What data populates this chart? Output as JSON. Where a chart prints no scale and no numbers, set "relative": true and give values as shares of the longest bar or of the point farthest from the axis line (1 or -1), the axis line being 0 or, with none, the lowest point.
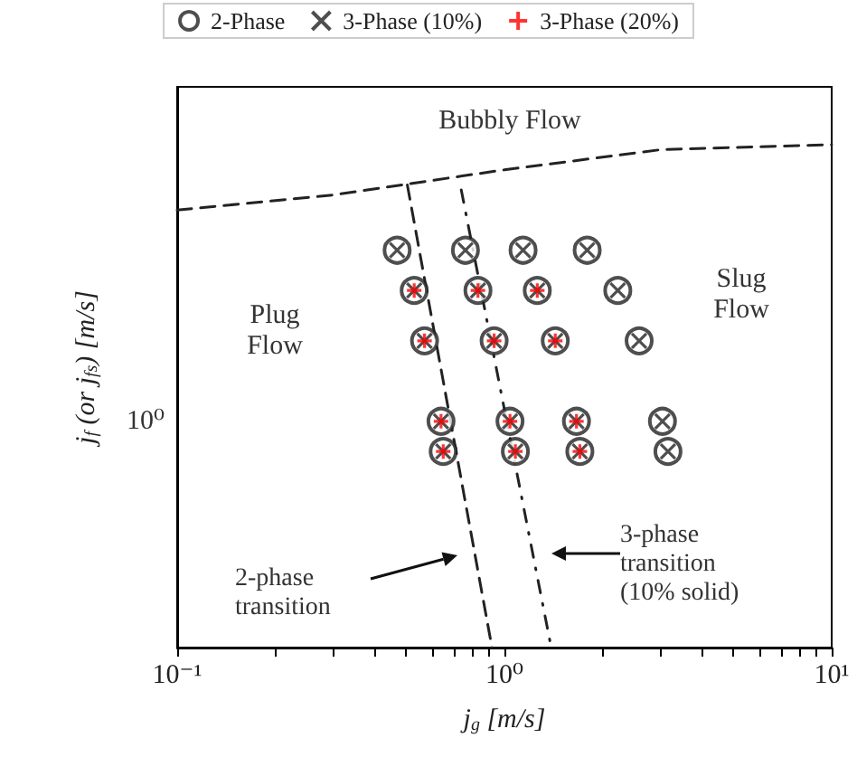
{
  "chart_data": {
    "type": "scatter",
    "xlabel": "j$_{g}$ [m/s]",
    "ylabel": "j$_{f}$ (or j$_{fs}$) [m/s]",
    "log": "x",
    "grid": false,
    "legend": "top",
    "relative": true,
    "xlim": [
      0.1,
      10
    ],
    "xticks": [
      {
        "value": 0.1,
        "label": "10⁻¹"
      },
      {
        "value": 0.2,
        "label": null
      },
      {
        "value": 0.3,
        "label": null
      },
      {
        "value": 0.4,
        "label": null
      },
      {
        "value": 0.5,
        "label": null
      },
      {
        "value": 0.6,
        "label": null
      },
      {
        "value": 0.7,
        "label": null
      },
      {
        "value": 0.8,
        "label": null
      },
      {
        "value": 0.9,
        "label": null
      },
      {
        "value": 1,
        "label": "10⁰"
      },
      {
        "value": 2,
        "label": null
      },
      {
        "value": 3,
        "label": null
      },
      {
        "value": 4,
        "label": null
      },
      {
        "value": 5,
        "label": null
      },
      {
        "value": 6,
        "label": null
      },
      {
        "value": 7,
        "label": null
      },
      {
        "value": 8,
        "label": null
      },
      {
        "value": 9,
        "label": null
      },
      {
        "value": 10,
        "label": "10¹"
      }
    ],
    "series": [
      {
        "name": "2-Phase",
        "color": "#222222",
        "marker": "circle",
        "x": [
          0.47,
          0.76,
          1.14,
          1.79,
          0.53,
          0.83,
          1.26,
          2.22,
          0.57,
          0.93,
          1.43,
          2.58,
          0.64,
          1.04,
          1.66,
          3.04,
          0.65,
          1.08,
          1.7,
          3.16
        ],
        "values": [
          0.79,
          0.79,
          0.79,
          0.79,
          0.71,
          0.71,
          0.71,
          0.71,
          0.61,
          0.61,
          0.61,
          0.61,
          0.45,
          0.45,
          0.45,
          0.45,
          0.39,
          0.39,
          0.39,
          0.39
        ]
      },
      {
        "name": "3-Phase (10%)",
        "color": "#222222",
        "marker": "x",
        "x": [
          0.47,
          0.76,
          1.14,
          1.79,
          0.53,
          0.83,
          1.26,
          2.22,
          0.57,
          0.93,
          1.43,
          2.58,
          0.64,
          1.04,
          1.66,
          3.04,
          0.65,
          1.08,
          1.7,
          3.16
        ],
        "values": [
          0.79,
          0.79,
          0.79,
          0.79,
          0.71,
          0.71,
          0.71,
          0.71,
          0.61,
          0.61,
          0.61,
          0.61,
          0.45,
          0.45,
          0.45,
          0.45,
          0.39,
          0.39,
          0.39,
          0.39
        ]
      },
      {
        "name": "3-Phase (20%)",
        "color": "#ff0000",
        "marker": "plus",
        "x": [
          0.53,
          0.83,
          1.26,
          0.57,
          0.93,
          1.43,
          0.64,
          1.04,
          1.66,
          0.65,
          1.08,
          1.7
        ],
        "values": [
          0.71,
          0.71,
          0.71,
          0.61,
          0.61,
          0.61,
          0.45,
          0.45,
          0.45,
          0.39,
          0.39,
          0.39
        ]
      },
      {
        "type": "line",
        "color": "#222222",
        "line_style": "dashed",
        "marker": "none",
        "x": [
          0.1,
          0.3,
          1.0,
          3.0,
          10
        ],
        "values": [
          0.87,
          0.9,
          0.95,
          0.99,
          1.0
        ]
      },
      {
        "type": "line",
        "color": "#222222",
        "line_style": "dashed",
        "marker": "none",
        "x": [
          0.505,
          0.916
        ],
        "values": [
          0.92,
          0
        ]
      },
      {
        "type": "line",
        "color": "#222222",
        "line_style": "dotted",
        "marker": "none",
        "x": [
          0.738,
          1.39
        ],
        "values": [
          0.91,
          0
        ]
      }
    ],
    "annotations": [
      "Bubbly Flow",
      "Plug\nFlow",
      "Slug\nFlow",
      "2-phase\ntransition",
      "3-phase\ntransition\n(10% solid)",
      "10⁰"
    ]
  }
}
